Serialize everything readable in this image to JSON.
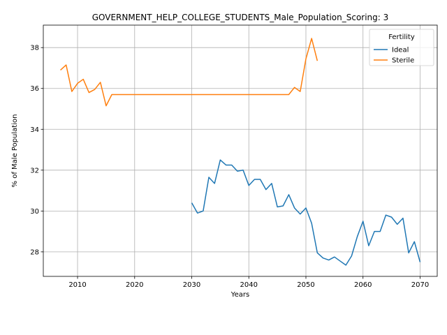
{
  "chart_data": {
    "type": "line",
    "title": "GOVERNMENT_HELP_COLLEGE_STUDENTS_Male_Population_Scoring: 3",
    "xlabel": "Years",
    "ylabel": "% of Male Population",
    "xlim": [
      2004,
      2073
    ],
    "ylim": [
      26.8,
      39.1
    ],
    "xticks": [
      2010,
      2020,
      2030,
      2040,
      2050,
      2060,
      2070
    ],
    "yticks": [
      28,
      30,
      32,
      34,
      36,
      38
    ],
    "grid": true,
    "legend": {
      "title": "Fertility",
      "position": "top-right"
    },
    "series": [
      {
        "name": "Ideal",
        "color": "#1f77b4",
        "x": [
          2030,
          2031,
          2032,
          2033,
          2034,
          2035,
          2036,
          2037,
          2038,
          2039,
          2040,
          2041,
          2042,
          2043,
          2044,
          2045,
          2046,
          2047,
          2048,
          2049,
          2050,
          2051,
          2052,
          2053,
          2054,
          2055,
          2056,
          2057,
          2058,
          2059,
          2060,
          2061,
          2062,
          2063,
          2064,
          2065,
          2066,
          2067,
          2068,
          2069,
          2070
        ],
        "y": [
          30.4,
          29.9,
          30.0,
          31.65,
          31.35,
          32.5,
          32.25,
          32.25,
          31.95,
          32.0,
          31.25,
          31.55,
          31.55,
          31.05,
          31.35,
          30.2,
          30.25,
          30.8,
          30.15,
          29.85,
          30.15,
          29.4,
          27.95,
          27.7,
          27.6,
          27.75,
          27.55,
          27.35,
          27.8,
          28.75,
          29.5,
          28.3,
          29.0,
          29.0,
          29.8,
          29.7,
          29.35,
          29.65,
          27.95,
          28.5,
          27.5
        ]
      },
      {
        "name": "Sterile",
        "color": "#ff7f0e",
        "x": [
          2007,
          2008,
          2009,
          2010,
          2011,
          2012,
          2013,
          2014,
          2015,
          2016,
          2017,
          2018,
          2019,
          2020,
          2021,
          2022,
          2023,
          2024,
          2025,
          2026,
          2027,
          2028,
          2029,
          2030,
          2031,
          2032,
          2033,
          2034,
          2035,
          2036,
          2037,
          2038,
          2039,
          2040,
          2041,
          2042,
          2043,
          2044,
          2045,
          2046,
          2047,
          2048,
          2049,
          2050,
          2051,
          2052
        ],
        "y": [
          36.9,
          37.15,
          35.85,
          36.25,
          36.45,
          35.8,
          35.95,
          36.3,
          35.15,
          35.7,
          35.7,
          35.7,
          35.7,
          35.7,
          35.7,
          35.7,
          35.7,
          35.7,
          35.7,
          35.7,
          35.7,
          35.7,
          35.7,
          35.7,
          35.7,
          35.7,
          35.7,
          35.7,
          35.7,
          35.7,
          35.7,
          35.7,
          35.7,
          35.7,
          35.7,
          35.7,
          35.7,
          35.7,
          35.7,
          35.7,
          35.7,
          36.05,
          35.85,
          37.45,
          38.45,
          37.35
        ]
      }
    ]
  }
}
